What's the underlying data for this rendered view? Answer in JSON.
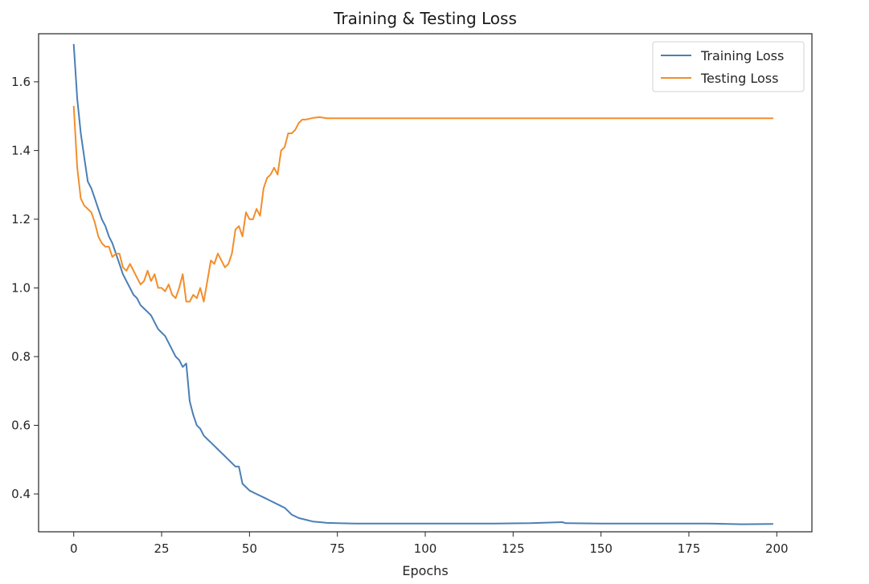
{
  "chart_data": {
    "type": "line",
    "title": "Training & Testing Loss",
    "xlabel": "Epochs",
    "ylabel": "",
    "xlim": [
      -10,
      210
    ],
    "ylim": [
      0.29,
      1.74
    ],
    "xticks": [
      0,
      25,
      50,
      75,
      100,
      125,
      150,
      175,
      200
    ],
    "yticks": [
      0.4,
      0.6,
      0.8,
      1.0,
      1.2,
      1.4,
      1.6
    ],
    "grid": false,
    "legend_position": "top-right",
    "series": [
      {
        "name": "Training Loss",
        "color": "#4a7fb5",
        "points": [
          [
            0,
            1.71
          ],
          [
            1,
            1.55
          ],
          [
            2,
            1.45
          ],
          [
            3,
            1.38
          ],
          [
            4,
            1.31
          ],
          [
            5,
            1.29
          ],
          [
            6,
            1.26
          ],
          [
            7,
            1.23
          ],
          [
            8,
            1.2
          ],
          [
            9,
            1.18
          ],
          [
            10,
            1.15
          ],
          [
            11,
            1.13
          ],
          [
            12,
            1.1
          ],
          [
            13,
            1.07
          ],
          [
            14,
            1.04
          ],
          [
            15,
            1.02
          ],
          [
            16,
            1.0
          ],
          [
            17,
            0.98
          ],
          [
            18,
            0.97
          ],
          [
            19,
            0.95
          ],
          [
            20,
            0.94
          ],
          [
            21,
            0.93
          ],
          [
            22,
            0.92
          ],
          [
            23,
            0.9
          ],
          [
            24,
            0.88
          ],
          [
            25,
            0.87
          ],
          [
            26,
            0.86
          ],
          [
            27,
            0.84
          ],
          [
            28,
            0.82
          ],
          [
            29,
            0.8
          ],
          [
            30,
            0.79
          ],
          [
            31,
            0.77
          ],
          [
            32,
            0.78
          ],
          [
            33,
            0.67
          ],
          [
            34,
            0.63
          ],
          [
            35,
            0.6
          ],
          [
            36,
            0.59
          ],
          [
            37,
            0.57
          ],
          [
            38,
            0.56
          ],
          [
            39,
            0.55
          ],
          [
            40,
            0.54
          ],
          [
            41,
            0.53
          ],
          [
            42,
            0.52
          ],
          [
            43,
            0.51
          ],
          [
            44,
            0.5
          ],
          [
            45,
            0.49
          ],
          [
            46,
            0.48
          ],
          [
            47,
            0.48
          ],
          [
            48,
            0.43
          ],
          [
            49,
            0.42
          ],
          [
            50,
            0.41
          ],
          [
            52,
            0.4
          ],
          [
            54,
            0.39
          ],
          [
            56,
            0.38
          ],
          [
            58,
            0.37
          ],
          [
            60,
            0.36
          ],
          [
            61,
            0.35
          ],
          [
            62,
            0.34
          ],
          [
            64,
            0.33
          ],
          [
            66,
            0.325
          ],
          [
            68,
            0.32
          ],
          [
            70,
            0.318
          ],
          [
            72,
            0.316
          ],
          [
            75,
            0.315
          ],
          [
            80,
            0.314
          ],
          [
            85,
            0.314
          ],
          [
            90,
            0.314
          ],
          [
            95,
            0.314
          ],
          [
            100,
            0.314
          ],
          [
            110,
            0.314
          ],
          [
            120,
            0.314
          ],
          [
            130,
            0.315
          ],
          [
            139,
            0.318
          ],
          [
            140,
            0.315
          ],
          [
            150,
            0.314
          ],
          [
            160,
            0.314
          ],
          [
            170,
            0.314
          ],
          [
            180,
            0.314
          ],
          [
            190,
            0.312
          ],
          [
            199,
            0.313
          ]
        ]
      },
      {
        "name": "Testing Loss",
        "color": "#f28e2b",
        "points": [
          [
            0,
            1.53
          ],
          [
            1,
            1.35
          ],
          [
            2,
            1.26
          ],
          [
            3,
            1.24
          ],
          [
            4,
            1.23
          ],
          [
            5,
            1.22
          ],
          [
            6,
            1.19
          ],
          [
            7,
            1.15
          ],
          [
            8,
            1.13
          ],
          [
            9,
            1.12
          ],
          [
            10,
            1.12
          ],
          [
            11,
            1.09
          ],
          [
            12,
            1.1
          ],
          [
            13,
            1.1
          ],
          [
            14,
            1.06
          ],
          [
            15,
            1.05
          ],
          [
            16,
            1.07
          ],
          [
            17,
            1.05
          ],
          [
            18,
            1.03
          ],
          [
            19,
            1.01
          ],
          [
            20,
            1.02
          ],
          [
            21,
            1.05
          ],
          [
            22,
            1.02
          ],
          [
            23,
            1.04
          ],
          [
            24,
            1.0
          ],
          [
            25,
            1.0
          ],
          [
            26,
            0.99
          ],
          [
            27,
            1.01
          ],
          [
            28,
            0.98
          ],
          [
            29,
            0.97
          ],
          [
            30,
            1.0
          ],
          [
            31,
            1.04
          ],
          [
            32,
            0.96
          ],
          [
            33,
            0.96
          ],
          [
            34,
            0.98
          ],
          [
            35,
            0.97
          ],
          [
            36,
            1.0
          ],
          [
            37,
            0.96
          ],
          [
            38,
            1.02
          ],
          [
            39,
            1.08
          ],
          [
            40,
            1.07
          ],
          [
            41,
            1.1
          ],
          [
            42,
            1.08
          ],
          [
            43,
            1.06
          ],
          [
            44,
            1.07
          ],
          [
            45,
            1.1
          ],
          [
            46,
            1.17
          ],
          [
            47,
            1.18
          ],
          [
            48,
            1.15
          ],
          [
            49,
            1.22
          ],
          [
            50,
            1.2
          ],
          [
            51,
            1.2
          ],
          [
            52,
            1.23
          ],
          [
            53,
            1.21
          ],
          [
            54,
            1.29
          ],
          [
            55,
            1.32
          ],
          [
            56,
            1.33
          ],
          [
            57,
            1.35
          ],
          [
            58,
            1.33
          ],
          [
            59,
            1.4
          ],
          [
            60,
            1.41
          ],
          [
            61,
            1.45
          ],
          [
            62,
            1.45
          ],
          [
            63,
            1.46
          ],
          [
            64,
            1.48
          ],
          [
            65,
            1.49
          ],
          [
            66,
            1.49
          ],
          [
            68,
            1.495
          ],
          [
            70,
            1.497
          ],
          [
            72,
            1.494
          ],
          [
            75,
            1.494
          ],
          [
            80,
            1.494
          ],
          [
            90,
            1.494
          ],
          [
            100,
            1.494
          ],
          [
            120,
            1.494
          ],
          [
            140,
            1.494
          ],
          [
            160,
            1.494
          ],
          [
            180,
            1.494
          ],
          [
            199,
            1.494
          ]
        ]
      }
    ]
  }
}
